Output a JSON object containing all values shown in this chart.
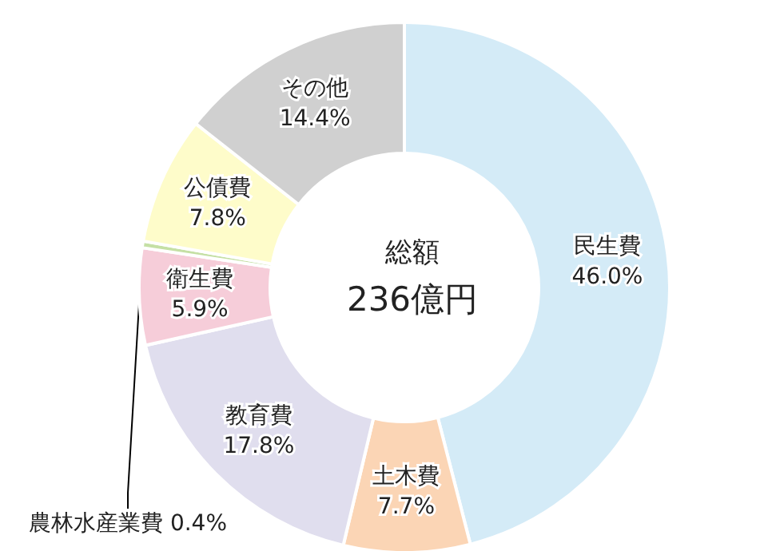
{
  "chart_data": {
    "type": "donut",
    "title": "総額",
    "subtitle": "236億円",
    "categories": [
      "民生費",
      "土木費",
      "教育費",
      "衛生費",
      "農林水産業費",
      "公債費",
      "その他"
    ],
    "values": [
      46.0,
      7.7,
      17.8,
      5.9,
      0.4,
      7.8,
      14.4
    ],
    "value_labels": [
      "46.0%",
      "7.7%",
      "17.8%",
      "5.9%",
      "0.4%",
      "7.8%",
      "14.4%"
    ],
    "colors": [
      "#d4ebf7",
      "#fbd5b5",
      "#e0deee",
      "#f6cdd9",
      "#c5e0a5",
      "#fefcca",
      "#d0d0d0"
    ],
    "legend": false
  }
}
